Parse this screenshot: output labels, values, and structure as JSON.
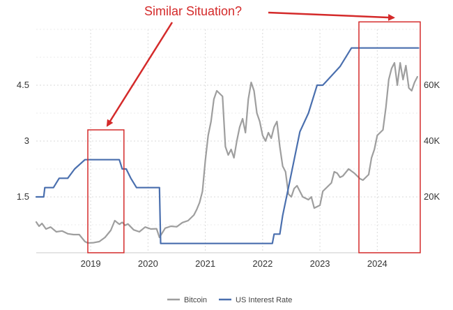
{
  "chart_data": {
    "type": "line",
    "title": "",
    "xlabel": "",
    "ylabel": "",
    "x_ticks": [
      "2019",
      "2020",
      "2021",
      "2022",
      "2023",
      "2024"
    ],
    "xlim": [
      2018.05,
      2024.75
    ],
    "y_left": {
      "ticks": [
        "1.5",
        "3",
        "4.5"
      ],
      "lim": [
        0,
        6
      ]
    },
    "y_right": {
      "ticks": [
        "20K",
        "40K",
        "60K"
      ],
      "lim": [
        0,
        80000
      ]
    },
    "grid": "dashed vertical and horizontal",
    "legend_position": "bottom-center",
    "series": [
      {
        "name": "Bitcoin",
        "axis": "right",
        "color": "#9e9e9e",
        "x": [
          2018.05,
          2018.1,
          2018.15,
          2018.22,
          2018.3,
          2018.4,
          2018.5,
          2018.6,
          2018.7,
          2018.8,
          2018.9,
          2018.95,
          2019.05,
          2019.15,
          2019.25,
          2019.35,
          2019.42,
          2019.5,
          2019.55,
          2019.6,
          2019.65,
          2019.75,
          2019.85,
          2019.95,
          2020.05,
          2020.15,
          2020.2,
          2020.3,
          2020.4,
          2020.5,
          2020.6,
          2020.7,
          2020.8,
          2020.85,
          2020.9,
          2020.95,
          2021.0,
          2021.05,
          2021.1,
          2021.15,
          2021.2,
          2021.25,
          2021.3,
          2021.35,
          2021.4,
          2021.45,
          2021.5,
          2021.55,
          2021.6,
          2021.65,
          2021.7,
          2021.75,
          2021.8,
          2021.85,
          2021.9,
          2021.95,
          2022.0,
          2022.05,
          2022.1,
          2022.15,
          2022.2,
          2022.25,
          2022.3,
          2022.35,
          2022.4,
          2022.45,
          2022.5,
          2022.55,
          2022.6,
          2022.7,
          2022.8,
          2022.85,
          2022.9,
          2022.95,
          2023.0,
          2023.05,
          2023.1,
          2023.15,
          2023.2,
          2023.25,
          2023.3,
          2023.35,
          2023.4,
          2023.5,
          2023.6,
          2023.7,
          2023.75,
          2023.8,
          2023.85,
          2023.9,
          2023.95,
          2024.0,
          2024.05,
          2024.1,
          2024.15,
          2024.2,
          2024.25,
          2024.3,
          2024.35,
          2024.4,
          2024.45,
          2024.5,
          2024.55,
          2024.6,
          2024.65,
          2024.7
        ],
        "y": [
          11000,
          9500,
          10500,
          8500,
          9200,
          7500,
          7800,
          6800,
          6500,
          6500,
          4000,
          3500,
          3600,
          4000,
          5500,
          8000,
          11500,
          10200,
          10900,
          9800,
          10300,
          8200,
          7500,
          9200,
          8500,
          8600,
          5500,
          8800,
          9500,
          9300,
          10800,
          11500,
          13500,
          15500,
          18000,
          22000,
          33000,
          42000,
          47000,
          55000,
          58000,
          57000,
          56000,
          38000,
          35000,
          37000,
          34000,
          40000,
          45000,
          48000,
          43000,
          55000,
          61000,
          58000,
          50000,
          47000,
          42000,
          40000,
          43000,
          41000,
          45000,
          47000,
          38000,
          31000,
          29000,
          21000,
          20000,
          23000,
          24000,
          20000,
          19000,
          20000,
          16000,
          16500,
          17000,
          22000,
          23000,
          24000,
          25000,
          29000,
          28500,
          27000,
          27500,
          30000,
          28500,
          26500,
          26000,
          27000,
          28000,
          34000,
          37000,
          42000,
          43000,
          44000,
          52000,
          62000,
          66000,
          68000,
          60000,
          68000,
          62000,
          67000,
          59000,
          58000,
          61000,
          63000
        ]
      },
      {
        "name": "US Interest Rate",
        "axis": "left",
        "color": "#4a6fae",
        "x": [
          2018.05,
          2018.18,
          2018.2,
          2018.35,
          2018.45,
          2018.6,
          2018.72,
          2018.9,
          2019.5,
          2019.55,
          2019.62,
          2019.7,
          2019.8,
          2020.2,
          2020.22,
          2022.17,
          2022.2,
          2022.3,
          2022.35,
          2022.45,
          2022.55,
          2022.65,
          2022.8,
          2022.95,
          2023.05,
          2023.2,
          2023.35,
          2023.55,
          2024.72
        ],
        "y": [
          1.5,
          1.5,
          1.75,
          1.75,
          2.0,
          2.0,
          2.25,
          2.5,
          2.5,
          2.25,
          2.25,
          2.0,
          1.75,
          1.75,
          0.25,
          0.25,
          0.5,
          0.5,
          1.0,
          1.75,
          2.5,
          3.25,
          3.75,
          4.5,
          4.5,
          4.75,
          5.0,
          5.5,
          5.5
        ]
      }
    ],
    "annotation": {
      "text": "Similar Situation?",
      "color": "#d42a2a",
      "boxes": [
        {
          "x0": 2018.95,
          "x1": 2019.58,
          "y0": 0,
          "y1": 3.3
        },
        {
          "x0": 2023.68,
          "x1": 2024.75,
          "y0": 0,
          "y1": 6.2
        }
      ]
    }
  }
}
